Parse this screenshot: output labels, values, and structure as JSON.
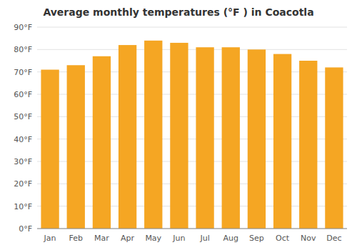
{
  "chart_data": {
    "type": "bar",
    "title": "Average monthly temperatures (°F ) in Coacotla",
    "categories": [
      "Jan",
      "Feb",
      "Mar",
      "Apr",
      "May",
      "Jun",
      "Jul",
      "Aug",
      "Sep",
      "Oct",
      "Nov",
      "Dec"
    ],
    "values": [
      71,
      73,
      77,
      82,
      84,
      83,
      81,
      81,
      80,
      78,
      75,
      72
    ],
    "color": "#F5A623",
    "ylim": [
      0,
      90
    ],
    "yticks": [
      {
        "value": 0,
        "label": "0°F"
      },
      {
        "value": 10,
        "label": "10°F"
      },
      {
        "value": 20,
        "label": "20°F"
      },
      {
        "value": 30,
        "label": "30°F"
      },
      {
        "value": 40,
        "label": "40°F"
      },
      {
        "value": 50,
        "label": "50°F"
      },
      {
        "value": 60,
        "label": "60°F"
      },
      {
        "value": 70,
        "label": "70°F"
      },
      {
        "value": 80,
        "label": "80°F"
      },
      {
        "value": 90,
        "label": "90°F"
      }
    ],
    "grid": true
  }
}
